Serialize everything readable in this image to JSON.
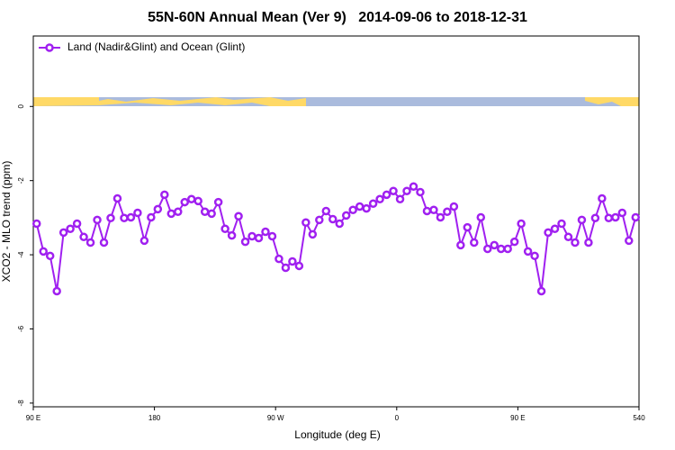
{
  "chart_data": {
    "type": "line",
    "title": "55N-60N Annual Mean (Ver 9)   2014-09-06 to 2018-12-31",
    "xlabel": "Longitude (deg E)",
    "ylabel": "XCO2 - MLO trend (ppm)",
    "x": [
      92.5,
      97.5,
      102.5,
      107.5,
      112.5,
      117.5,
      122.5,
      127.5,
      132.5,
      137.5,
      142.5,
      147.5,
      152.5,
      157.5,
      162.5,
      167.5,
      172.5,
      177.5,
      182.5,
      187.5,
      192.5,
      197.5,
      202.5,
      207.5,
      212.5,
      217.5,
      222.5,
      227.5,
      232.5,
      237.5,
      242.5,
      247.5,
      252.5,
      257.5,
      262.5,
      267.5,
      272.5,
      277.5,
      282.5,
      287.5,
      292.5,
      297.5,
      302.5,
      307.5,
      312.5,
      317.5,
      322.5,
      327.5,
      332.5,
      337.5,
      342.5,
      347.5,
      352.5,
      357.5,
      362.5,
      367.5,
      372.5,
      377.5,
      382.5,
      387.5,
      392.5,
      397.5,
      402.5,
      407.5,
      412.5,
      417.5,
      422.5,
      427.5,
      432.5,
      437.5,
      442.5,
      447.5,
      452.5,
      457.5,
      462.5,
      467.5,
      472.5,
      477.5,
      482.5,
      487.5,
      492.5,
      497.5,
      502.5,
      507.5,
      512.5,
      517.5,
      522.5,
      527.5,
      532.5,
      537.5
    ],
    "series": [
      {
        "name": "Land (Nadir&Glint) and Ocean (Glint)",
        "color": "#a020f0",
        "values": [
          -3.16,
          -3.91,
          -4.03,
          -4.98,
          -3.4,
          -3.3,
          -3.16,
          -3.52,
          -3.67,
          -3.06,
          -3.67,
          -3.01,
          -2.48,
          -3.01,
          -2.99,
          -2.87,
          -3.62,
          -2.99,
          -2.77,
          -2.38,
          -2.89,
          -2.84,
          -2.58,
          -2.5,
          -2.55,
          -2.84,
          -2.89,
          -2.58,
          -3.3,
          -3.48,
          -2.96,
          -3.65,
          -3.5,
          -3.55,
          -3.38,
          -3.5,
          -4.11,
          -4.35,
          -4.18,
          -4.3,
          -3.13,
          -3.45,
          -3.06,
          -2.82,
          -3.04,
          -3.16,
          -2.94,
          -2.79,
          -2.7,
          -2.75,
          -2.62,
          -2.5,
          -2.38,
          -2.28,
          -2.5,
          -2.28,
          -2.16,
          -2.31,
          -2.82,
          -2.79,
          -2.99,
          -2.84,
          -2.7,
          -3.74,
          -3.26,
          -3.67,
          -2.99,
          -3.84,
          -3.74,
          -3.84,
          -3.84,
          -3.65,
          -3.16,
          -3.91,
          -4.03,
          -4.98,
          -3.4,
          -3.3,
          -3.16,
          -3.52,
          -3.67,
          -3.06,
          -3.67,
          -3.01,
          -2.48,
          -3.01,
          -2.99,
          -2.87,
          -3.62,
          -2.99
        ]
      }
    ],
    "xlim": [
      90,
      540
    ],
    "xticks": [
      {
        "value": 90,
        "label": "90 E"
      },
      180,
      {
        "value": 270,
        "label": "90 W"
      },
      {
        "value": 360,
        "label": "0"
      },
      {
        "value": 450,
        "label": "90 E"
      },
      540
    ],
    "ylim": [
      -8.1,
      1.9
    ],
    "yticks": [
      0,
      -2,
      -4,
      -6,
      -8
    ],
    "legend": "top-left"
  }
}
